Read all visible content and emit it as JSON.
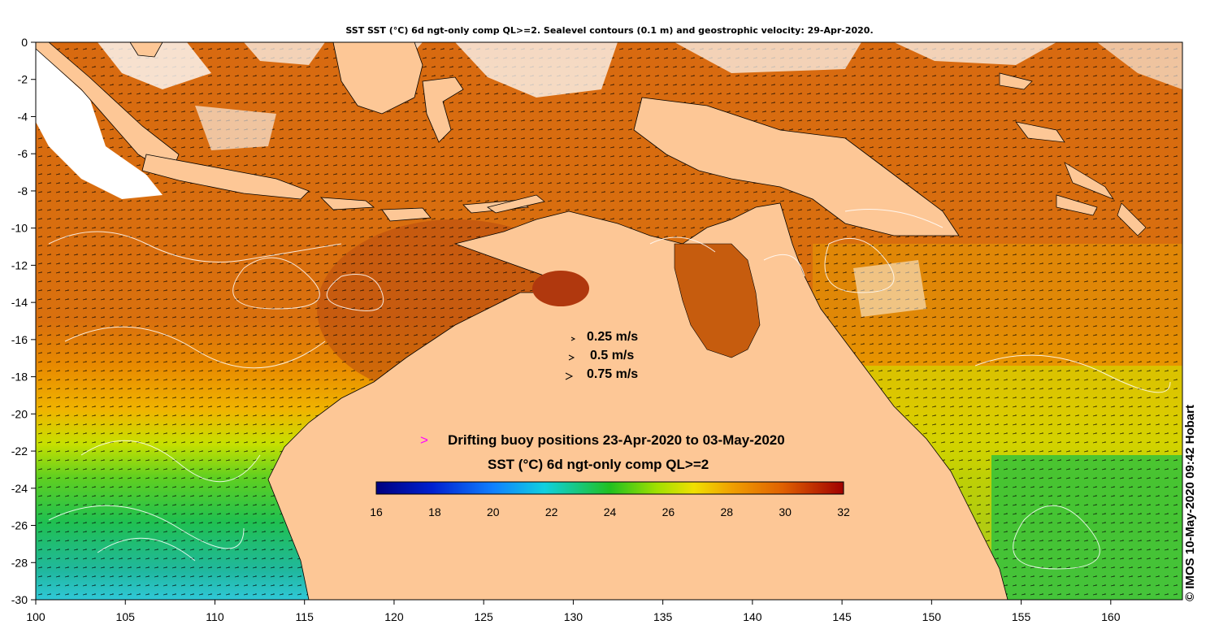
{
  "title": "SST SST (°C) 6d ngt-only comp QL>=2. Sealevel contours (0.1 m) and geostrophic velocity: 29-Apr-2020.",
  "credit": "© IMOS 10-May-2020 09:42 Hobart",
  "velocity_key": [
    {
      "speed": "0.25 m/s"
    },
    {
      "speed": "0.5 m/s"
    },
    {
      "speed": "0.75 m/s"
    }
  ],
  "buoy_legend": {
    "symbol": ">",
    "text": "Drifting buoy positions 23-Apr-2020 to 03-May-2020",
    "symbol_color": "#ff00ff"
  },
  "colorbar": {
    "title": "SST (°C) 6d ngt-only comp QL>=2",
    "min": 16,
    "max": 32,
    "ticks": [
      "16",
      "18",
      "20",
      "22",
      "24",
      "26",
      "28",
      "30",
      "32"
    ]
  },
  "axes": {
    "x_ticks": [
      "100",
      "105",
      "110",
      "115",
      "120",
      "125",
      "130",
      "135",
      "140",
      "145",
      "150",
      "155",
      "160"
    ],
    "y_ticks": [
      "0",
      "-2",
      "-4",
      "-6",
      "-8",
      "-10",
      "-12",
      "-14",
      "-16",
      "-18",
      "-20",
      "-22",
      "-24",
      "-26",
      "-28",
      "-30"
    ],
    "lon_range": [
      100,
      164
    ],
    "lat_range": [
      -30,
      0
    ]
  },
  "colors": {
    "land": "#fdc796",
    "sst_warm": "#d2690e",
    "sst_hot": "#b8420f",
    "sst_mid": "#f0a000",
    "sst_yellow": "#d8e000",
    "sst_green": "#20c040",
    "sst_cyan": "#20c0c0"
  }
}
